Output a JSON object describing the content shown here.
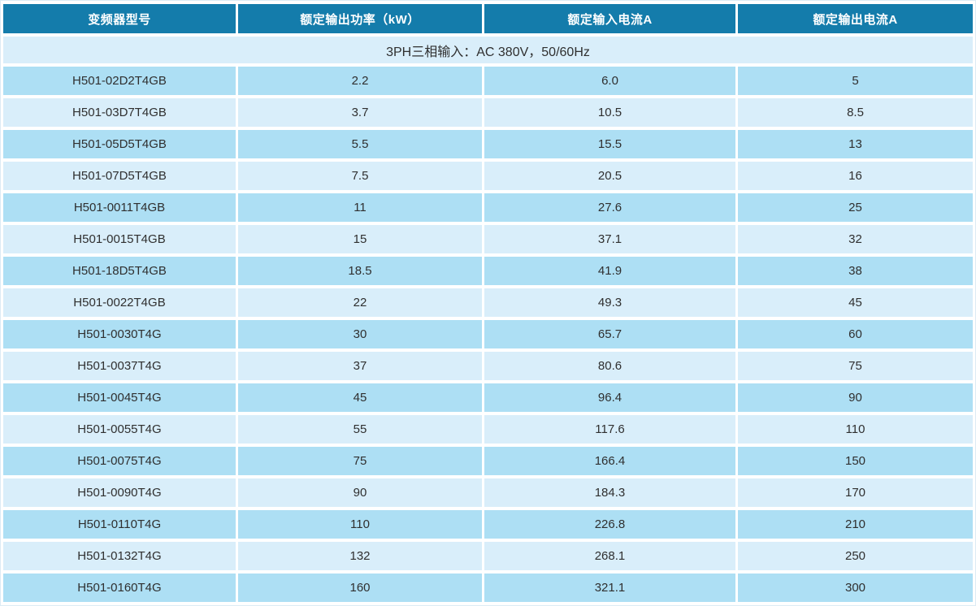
{
  "table": {
    "columns": [
      {
        "label": "变频器型号"
      },
      {
        "label": "额定输出功率（kW）"
      },
      {
        "label": "额定输入电流A"
      },
      {
        "label": "额定输出电流A"
      }
    ],
    "group_header": "3PH三相输入：AC 380V，50/60Hz",
    "rows": [
      [
        "H501-02D2T4GB",
        "2.2",
        "6.0",
        "5"
      ],
      [
        "H501-03D7T4GB",
        "3.7",
        "10.5",
        "8.5"
      ],
      [
        "H501-05D5T4GB",
        "5.5",
        "15.5",
        "13"
      ],
      [
        "H501-07D5T4GB",
        "7.5",
        "20.5",
        "16"
      ],
      [
        "H501-0011T4GB",
        "11",
        "27.6",
        "25"
      ],
      [
        "H501-0015T4GB",
        "15",
        "37.1",
        "32"
      ],
      [
        "H501-18D5T4GB",
        "18.5",
        "41.9",
        "38"
      ],
      [
        "H501-0022T4GB",
        "22",
        "49.3",
        "45"
      ],
      [
        "H501-0030T4G",
        "30",
        "65.7",
        "60"
      ],
      [
        "H501-0037T4G",
        "37",
        "80.6",
        "75"
      ],
      [
        "H501-0045T4G",
        "45",
        "96.4",
        "90"
      ],
      [
        "H501-0055T4G",
        "55",
        "117.6",
        "110"
      ],
      [
        "H501-0075T4G",
        "75",
        "166.4",
        "150"
      ],
      [
        "H501-0090T4G",
        "90",
        "184.3",
        "170"
      ],
      [
        "H501-0110T4G",
        "110",
        "226.8",
        "210"
      ],
      [
        "H501-0132T4G",
        "132",
        "268.1",
        "250"
      ],
      [
        "H501-0160T4G",
        "160",
        "321.1",
        "300"
      ]
    ],
    "colors": {
      "header_bg": "#147cab",
      "header_text": "#ffffff",
      "row_dark_bg": "#addff4",
      "row_light_bg": "#d9eefa",
      "separator": "#ffffff",
      "body_text": "#2f2f2f"
    }
  }
}
